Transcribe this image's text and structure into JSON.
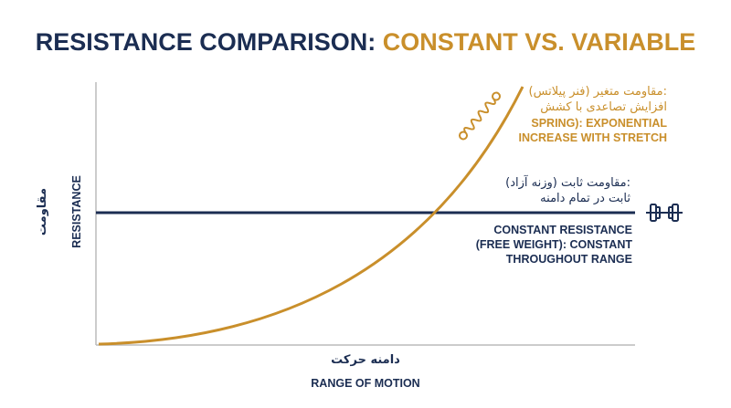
{
  "title": {
    "part1": "RESISTANCE COMPARISON: ",
    "part2": "CONSTANT VS. VARIABLE"
  },
  "y_axis": {
    "label_fa": "مقاومت",
    "label_en": "RESISTANCE"
  },
  "x_axis": {
    "label_fa": "دامنه حرکت",
    "label_en": "RANGE OF MOTION"
  },
  "variable": {
    "label_fa": [
      "مقاومت متغیر (فنر پیلاتس):",
      "افزایش تصاعدی با کشش"
    ],
    "label_en": [
      "SPRING): EXPONENTIAL",
      "INCREASE WITH STRETCH"
    ]
  },
  "constant": {
    "label_fa": [
      "مقاومت ثابت (وزنه آزاد):",
      "ثابت در تمام دامنه"
    ],
    "label_en": [
      "CONSTANT RESISTANCE",
      "(FREE WEIGHT): CONSTANT",
      "THROUGHOUT RANGE"
    ]
  }
}
